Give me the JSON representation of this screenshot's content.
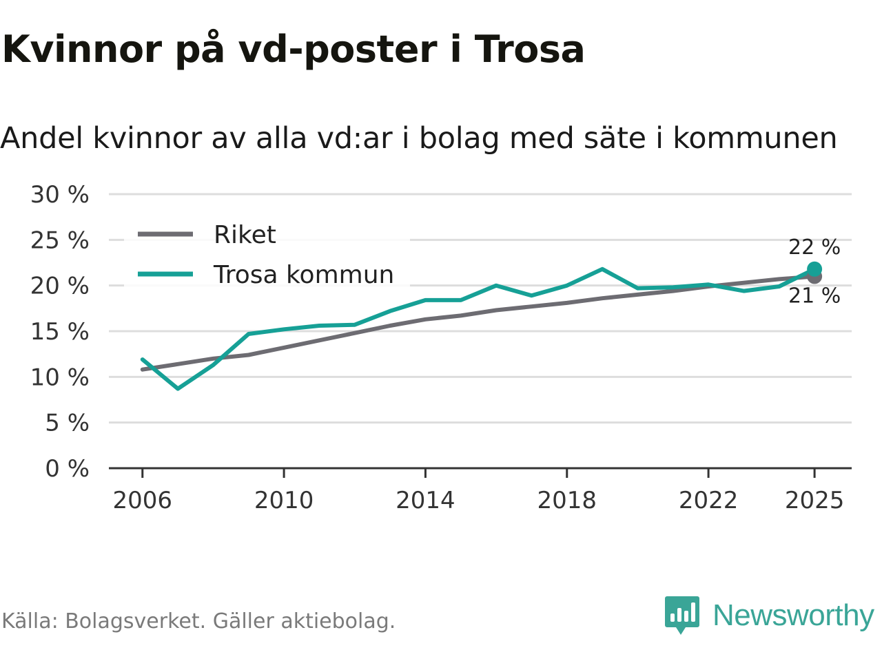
{
  "title": "Kvinnor på vd-poster i Trosa",
  "subtitle": "Andel kvinnor av alla vd:ar i bolag med säte i kommunen",
  "source": "Källa: Bolagsverket. Gäller aktiebolag.",
  "brand": "Newsworthy",
  "colors": {
    "riket": "#6d6c72",
    "trosa": "#16a096",
    "grid": "#dddddd",
    "axis": "#333333"
  },
  "chart_data": {
    "type": "line",
    "title": "Kvinnor på vd-poster i Trosa",
    "xlabel": "",
    "ylabel": "",
    "ylim": [
      0,
      30
    ],
    "yticks": [
      0,
      5,
      10,
      15,
      20,
      25,
      30
    ],
    "ytick_labels": [
      "0 %",
      "5 %",
      "10 %",
      "15 %",
      "20 %",
      "25 %",
      "30 %"
    ],
    "xticks": [
      2006,
      2010,
      2014,
      2018,
      2022,
      2025
    ],
    "xtick_labels": [
      "2006",
      "2010",
      "2014",
      "2018",
      "2022",
      "2025"
    ],
    "x": [
      2006,
      2007,
      2008,
      2009,
      2010,
      2011,
      2012,
      2013,
      2014,
      2015,
      2016,
      2017,
      2018,
      2019,
      2020,
      2021,
      2022,
      2023,
      2024,
      2025
    ],
    "series": [
      {
        "name": "Riket",
        "color": "#6d6c72",
        "values": [
          10.8,
          11.4,
          12.0,
          12.4,
          13.2,
          14.0,
          14.8,
          15.6,
          16.3,
          16.7,
          17.3,
          17.7,
          18.1,
          18.6,
          19.0,
          19.4,
          19.9,
          20.3,
          20.7,
          21.0
        ]
      },
      {
        "name": "Trosa kommun",
        "color": "#16a096",
        "values": [
          11.9,
          8.7,
          11.3,
          14.7,
          15.2,
          15.6,
          15.7,
          17.2,
          18.4,
          18.4,
          20.0,
          18.9,
          20.0,
          21.8,
          19.7,
          19.8,
          20.1,
          19.4,
          19.9,
          21.8
        ]
      }
    ],
    "end_labels": {
      "Trosa kommun": "22 %",
      "Riket": "21 %"
    },
    "legend": {
      "position": "top-left",
      "entries": [
        "Riket",
        "Trosa kommun"
      ]
    }
  }
}
